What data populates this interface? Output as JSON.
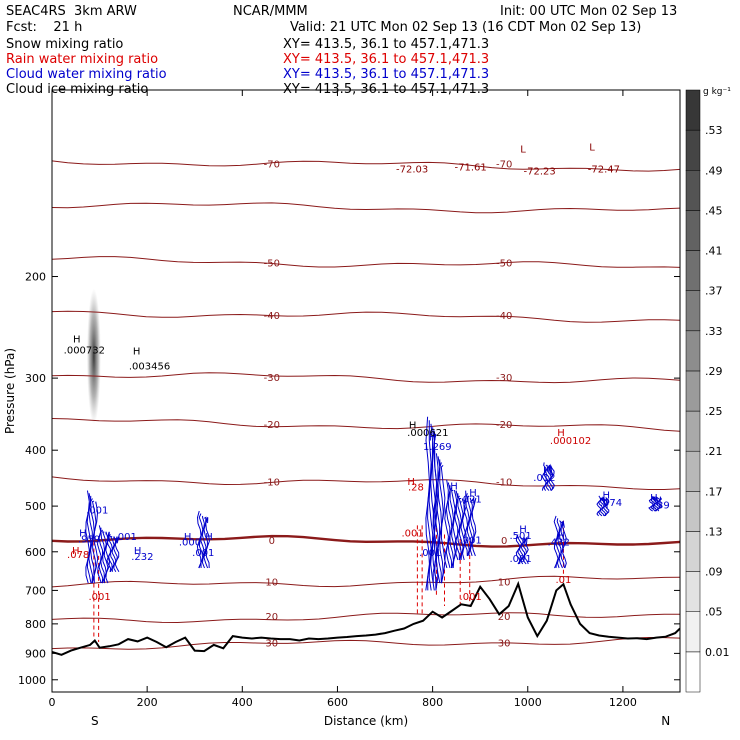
{
  "header": {
    "model": "SEAC4RS  3km ARW",
    "center": "NCAR/MMM",
    "init": "Init: 00 UTC Mon 02 Sep 13",
    "fcst": "Fcst:    21 h",
    "valid": "Valid: 21 UTC Mon 02 Sep 13 (16 CDT Mon 02 Sep 13)"
  },
  "fields": [
    {
      "label": "Snow mixing ratio",
      "xy": "XY= 413.5, 36.1 to 457.1,471.3",
      "color": "#000000"
    },
    {
      "label": "Rain water mixing ratio",
      "xy": "XY= 413.5, 36.1 to 457.1,471.3",
      "color": "#dd0000"
    },
    {
      "label": "Cloud water mixing ratio",
      "xy": "XY= 413.5, 36.1 to 457.1,471.3",
      "color": "#0000cc"
    },
    {
      "label": "Cloud ice mixing ratio",
      "xy": "XY= 413.5, 36.1 to 457.1,471.3",
      "color": "#000000"
    }
  ],
  "chart_data": {
    "type": "contour",
    "xlabel": "Distance (km)",
    "ylabel": "Pressure (hPa)",
    "xlim": [
      0,
      1320
    ],
    "ylim": [
      1050,
      95
    ],
    "y_scale": "log",
    "x_ticks": [
      0,
      200,
      400,
      600,
      800,
      1000,
      1200
    ],
    "x_tick_labels": [
      "0",
      "200",
      "400",
      "600",
      "800",
      "1000",
      "1200"
    ],
    "y_ticks": [
      200,
      300,
      400,
      500,
      600,
      700,
      800,
      900,
      1000
    ],
    "y_tick_labels": [
      "200",
      "300",
      "400",
      "500",
      "600",
      "700",
      "800",
      "900",
      "1000"
    ],
    "endpoints": {
      "left": "S",
      "right": "N"
    },
    "colorbar": {
      "unit": "g kg⁻¹",
      "levels": [
        "0.01",
        ".05",
        ".09",
        ".13",
        ".17",
        ".21",
        ".25",
        ".29",
        ".33",
        ".37",
        ".41",
        ".45",
        ".49",
        ".53"
      ]
    },
    "temperature_contours": [
      {
        "value": -70,
        "p": 128,
        "label": "-70"
      },
      {
        "value": -60,
        "p": 152,
        "label": ""
      },
      {
        "value": -50,
        "p": 190,
        "label": "-50"
      },
      {
        "value": -40,
        "p": 234,
        "label": "-40"
      },
      {
        "value": -30,
        "p": 300,
        "label": "-30"
      },
      {
        "value": -20,
        "p": 362,
        "label": "-20"
      },
      {
        "value": -10,
        "p": 455,
        "label": "-10"
      },
      {
        "value": 0,
        "p": 575,
        "label": "0"
      },
      {
        "value": 10,
        "p": 678,
        "label": "10"
      },
      {
        "value": 20,
        "p": 778,
        "label": "20"
      },
      {
        "value": 30,
        "p": 865,
        "label": "30"
      }
    ],
    "extrema_labels": [
      {
        "text": "H",
        "x": 52,
        "p": 260,
        "color": "#000"
      },
      {
        "text": ".000732",
        "x": 68,
        "p": 272,
        "color": "#000"
      },
      {
        "text": "H",
        "x": 178,
        "p": 273,
        "color": "#000"
      },
      {
        "text": ".003456",
        "x": 205,
        "p": 290,
        "color": "#000"
      },
      {
        "text": "H",
        "x": 758,
        "p": 367,
        "color": "#000"
      },
      {
        "text": ".000621",
        "x": 790,
        "p": 378,
        "color": "#000"
      },
      {
        "text": "-72.03",
        "x": 757,
        "p": 132,
        "color": "#880000"
      },
      {
        "text": "-71.61",
        "x": 880,
        "p": 131,
        "color": "#880000"
      },
      {
        "text": "-72.23",
        "x": 1025,
        "p": 133,
        "color": "#880000"
      },
      {
        "text": "-72.47",
        "x": 1160,
        "p": 132,
        "color": "#880000"
      },
      {
        "text": "L",
        "x": 990,
        "p": 122,
        "color": "#880000"
      },
      {
        "text": "L",
        "x": 1135,
        "p": 121,
        "color": "#880000"
      },
      {
        "text": "H",
        "x": 1070,
        "p": 378,
        "color": "#cc0000"
      },
      {
        "text": ".000102",
        "x": 1090,
        "p": 390,
        "color": "#cc0000"
      },
      {
        "text": "H",
        "x": 755,
        "p": 460,
        "color": "#cc0000"
      },
      {
        "text": ".28",
        "x": 765,
        "p": 470,
        "color": "#cc0000"
      },
      {
        "text": "H",
        "x": 50,
        "p": 605,
        "color": "#cc0000"
      },
      {
        "text": ".078",
        "x": 55,
        "p": 615,
        "color": "#cc0000"
      },
      {
        "text": ".001",
        "x": 100,
        "p": 728,
        "color": "#cc0000"
      },
      {
        "text": ".001",
        "x": 880,
        "p": 728,
        "color": "#cc0000"
      },
      {
        "text": ".001",
        "x": 758,
        "p": 565,
        "color": "#cc0000"
      },
      {
        "text": ".01",
        "x": 1075,
        "p": 680,
        "color": "#cc0000"
      },
      {
        "text": "H",
        "x": 800,
        "p": 385,
        "color": "#0000cc"
      },
      {
        "text": "1.269",
        "x": 810,
        "p": 400,
        "color": "#0000cc"
      },
      {
        "text": ".001",
        "x": 95,
        "p": 515,
        "color": "#0000cc"
      },
      {
        "text": "H",
        "x": 65,
        "p": 565,
        "color": "#0000cc"
      },
      {
        "text": ".959",
        "x": 78,
        "p": 578,
        "color": "#0000cc"
      },
      {
        "text": ".001",
        "x": 155,
        "p": 572,
        "color": "#0000cc"
      },
      {
        "text": "H",
        "x": 180,
        "p": 605,
        "color": "#0000cc"
      },
      {
        "text": ".232",
        "x": 190,
        "p": 620,
        "color": "#0000cc"
      },
      {
        "text": "H",
        "x": 285,
        "p": 572,
        "color": "#0000cc"
      },
      {
        "text": ".000",
        "x": 290,
        "p": 585,
        "color": "#0000cc"
      },
      {
        "text": "H",
        "x": 330,
        "p": 572,
        "color": "#0000cc"
      },
      {
        "text": ".001",
        "x": 318,
        "p": 610,
        "color": "#0000cc"
      },
      {
        "text": "H",
        "x": 845,
        "p": 468,
        "color": "#0000cc"
      },
      {
        "text": "H",
        "x": 885,
        "p": 480,
        "color": "#0000cc"
      },
      {
        "text": ".021",
        "x": 880,
        "p": 493,
        "color": "#0000cc"
      },
      {
        "text": ".001",
        "x": 880,
        "p": 580,
        "color": "#0000cc"
      },
      {
        "text": ".001",
        "x": 795,
        "p": 610,
        "color": "#0000cc"
      },
      {
        "text": "H",
        "x": 990,
        "p": 555,
        "color": "#0000cc"
      },
      {
        "text": ".501",
        "x": 985,
        "p": 570,
        "color": "#0000cc"
      },
      {
        "text": ".001",
        "x": 985,
        "p": 625,
        "color": "#0000cc"
      },
      {
        "text": "H",
        "x": 1070,
        "p": 570,
        "color": "#0000cc"
      },
      {
        "text": ".432",
        "x": 1065,
        "p": 585,
        "color": "#0000cc"
      },
      {
        "text": "H",
        "x": 1040,
        "p": 440,
        "color": "#0000cc"
      },
      {
        "text": ".012",
        "x": 1035,
        "p": 452,
        "color": "#0000cc"
      },
      {
        "text": "H",
        "x": 1165,
        "p": 485,
        "color": "#0000cc"
      },
      {
        "text": ".074",
        "x": 1175,
        "p": 500,
        "color": "#0000cc"
      },
      {
        "text": "H",
        "x": 1265,
        "p": 490,
        "color": "#0000cc"
      },
      {
        "text": ".139",
        "x": 1275,
        "p": 505,
        "color": "#0000cc"
      }
    ],
    "terrain": {
      "x": [
        0,
        20,
        40,
        60,
        80,
        90,
        100,
        120,
        140,
        160,
        180,
        200,
        220,
        240,
        260,
        280,
        300,
        320,
        340,
        360,
        380,
        400,
        420,
        440,
        460,
        480,
        500,
        520,
        540,
        560,
        580,
        600,
        620,
        640,
        660,
        680,
        700,
        720,
        740,
        760,
        780,
        800,
        820,
        840,
        860,
        880,
        900,
        920,
        940,
        960,
        980,
        1000,
        1020,
        1040,
        1060,
        1075,
        1090,
        1110,
        1130,
        1150,
        1170,
        1190,
        1210,
        1230,
        1250,
        1270,
        1290,
        1310,
        1320
      ],
      "p": [
        895,
        905,
        890,
        880,
        870,
        855,
        880,
        875,
        868,
        850,
        858,
        845,
        860,
        878,
        860,
        845,
        890,
        892,
        870,
        882,
        840,
        845,
        848,
        845,
        848,
        850,
        850,
        855,
        848,
        850,
        848,
        845,
        843,
        840,
        838,
        835,
        830,
        822,
        815,
        800,
        790,
        762,
        780,
        760,
        740,
        745,
        690,
        725,
        770,
        745,
        682,
        780,
        840,
        790,
        700,
        683,
        740,
        800,
        830,
        838,
        842,
        845,
        848,
        847,
        850,
        845,
        842,
        830,
        815
      ]
    },
    "rain_lines": [
      [
        88,
        560,
        850
      ],
      [
        98,
        610,
        860
      ],
      [
        768,
        540,
        770
      ],
      [
        778,
        540,
        775
      ],
      [
        808,
        545,
        720
      ],
      [
        825,
        560,
        745
      ],
      [
        858,
        570,
        740
      ],
      [
        878,
        575,
        740
      ],
      [
        1075,
        530,
        655
      ]
    ]
  }
}
